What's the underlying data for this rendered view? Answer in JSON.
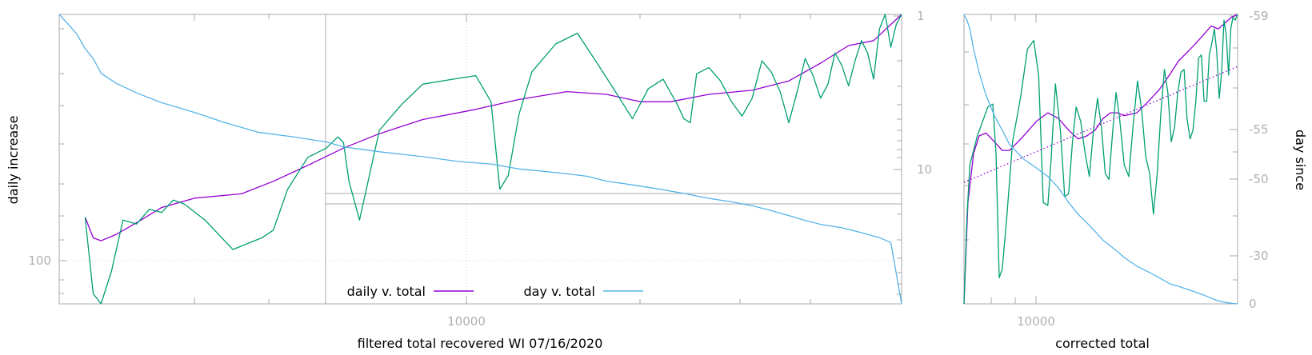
{
  "chart_data": [
    {
      "type": "line",
      "xlabel": "filtered total recovered WI 07/16/2020",
      "ylabel": "daily increase",
      "y2label": "",
      "x_scale": "log",
      "x_range": [
        1300,
        45000
      ],
      "x_tick_labels": [
        {
          "x": 10000,
          "label": "10000"
        }
      ],
      "y_scale": "log",
      "y_range_top_to_bottom": [
        1,
        180
      ],
      "y_left_tick_labels": [
        {
          "y": 100,
          "label": "100"
        }
      ],
      "y_right_tick_labels": [
        {
          "y": 1,
          "label": "1"
        },
        {
          "y": 10,
          "label": "10"
        }
      ],
      "grid": "dotted at x=10000 and y=100",
      "legend": {
        "placement": "bottom-center",
        "entries": [
          {
            "label": "daily v. total",
            "color": "#9400d3"
          },
          {
            "label": "day v. total",
            "color": "#56b4e9"
          }
        ]
      },
      "inset_box": {
        "x_from": 4300,
        "y_from": 12
      },
      "series": [
        {
          "name": "daily v. total",
          "color": "#9400d3",
          "x": [
            1450,
            1500,
            1550,
            1650,
            1800,
            2000,
            2300,
            2800,
            3200,
            3700,
            4300,
            5000,
            6000,
            7500,
            9000,
            11000,
            13000,
            15000,
            17000,
            20000,
            24000,
            28000,
            32000,
            36000,
            40000,
            45000
          ],
          "y": [
            38,
            55,
            58,
            52,
            42,
            32,
            27,
            25,
            20,
            15,
            11,
            8.5,
            6.6,
            5.5,
            4.6,
            4.0,
            4.2,
            4.8,
            4.8,
            4.2,
            3.9,
            3.3,
            2.4,
            1.75,
            1.6,
            1.0
          ]
        },
        {
          "name": "",
          "color": "#009e73",
          "x": [
            1450,
            1500,
            1550,
            1620,
            1700,
            1800,
            1900,
            2000,
            2100,
            2200,
            2400,
            2700,
            2900,
            3050,
            3200,
            3400,
            3700,
            4000,
            4200,
            4300,
            4400,
            4600,
            5000,
            5500,
            6000,
            6800,
            7500,
            8000,
            8300,
            8600,
            9000,
            9500,
            10500,
            11500,
            12500,
            13500,
            14500,
            15500,
            16500,
            17500,
            18000,
            18500,
            19000,
            20000,
            21000,
            22000,
            23000,
            24000,
            25000,
            26000,
            27000,
            28000,
            29000,
            30000,
            31000,
            32000,
            33000,
            34000,
            35000,
            36000,
            37000,
            38000,
            39000,
            40000,
            41000,
            42000,
            43000,
            44000,
            45000
          ],
          "y": [
            38,
            150,
            180,
            100,
            40,
            43,
            33,
            35,
            28,
            30,
            40,
            68,
            60,
            55,
            48,
            23,
            13,
            11,
            9,
            10,
            20,
            40,
            8,
            5,
            3.5,
            3.2,
            3.0,
            4.8,
            23,
            18,
            6,
            2.8,
            1.7,
            1.4,
            2.4,
            4.0,
            6.5,
            3.8,
            3.2,
            5.0,
            6.5,
            7.0,
            2.9,
            2.6,
            3.3,
            4.8,
            6.2,
            4.5,
            2.3,
            2.8,
            4.0,
            7.0,
            4.0,
            2.2,
            3.0,
            4.5,
            3.5,
            2.0,
            2.5,
            3.6,
            2.3,
            1.6,
            2.0,
            3.2,
            1.3,
            1.0,
            1.8,
            1.2,
            1.0
          ]
        },
        {
          "name": "day v. total",
          "color": "#56b4e9",
          "y_axis": "right",
          "y2_range": [
            0,
            -59
          ],
          "x": [
            1300,
            1350,
            1400,
            1450,
            1500,
            1550,
            1650,
            1800,
            2000,
            2300,
            2600,
            3000,
            3500,
            4000,
            4300,
            5000,
            6000,
            7000,
            8000,
            9000,
            10000,
            11000,
            12000,
            13000,
            14000,
            16000,
            18000,
            20000,
            22000,
            24000,
            26000,
            28000,
            30000,
            32000,
            35000,
            38000,
            41000,
            43000,
            45000
          ],
          "y": [
            -59,
            -57,
            -55,
            -52,
            -50,
            -47,
            -45,
            -43,
            -41,
            -39,
            -37,
            -35,
            -34,
            -33,
            -32,
            -31,
            -30,
            -29,
            -28.5,
            -27.5,
            -27,
            -26.5,
            -26,
            -25,
            -24.5,
            -23.5,
            -22.5,
            -21.5,
            -20.8,
            -20,
            -19,
            -18,
            -17,
            -16.2,
            -15.5,
            -14.5,
            -13.5,
            -12.5,
            0
          ]
        }
      ]
    },
    {
      "type": "line",
      "xlabel": "corrected total",
      "ylabel": "day since",
      "x_scale": "log",
      "x_range": [
        7300,
        48000
      ],
      "x_tick_labels": [
        {
          "x": 10000,
          "label": "10000"
        }
      ],
      "y_right_tick_labels": [
        {
          "value": -59,
          "label": "-59"
        },
        {
          "value": -55,
          "label": "-55"
        },
        {
          "value": -50,
          "label": "-50"
        },
        {
          "value": -30,
          "label": "-30"
        },
        {
          "value": 0,
          "label": "0"
        }
      ],
      "series": [
        {
          "name": "",
          "color": "#9400d3",
          "x": [
            7300,
            7500,
            7800,
            8100,
            8500,
            9000,
            9500,
            10000,
            11000,
            12000,
            13000,
            14000,
            15000,
            16000,
            17000,
            18000,
            19000,
            20000,
            21000,
            22000,
            24000,
            26000,
            28000,
            30000,
            32000,
            34000,
            36000,
            38000,
            40000,
            42000,
            44000,
            46000,
            48000
          ],
          "y": [
            0,
            0.35,
            0.52,
            0.58,
            0.59,
            0.56,
            0.53,
            0.53,
            0.58,
            0.63,
            0.66,
            0.64,
            0.6,
            0.57,
            0.58,
            0.6,
            0.64,
            0.66,
            0.66,
            0.65,
            0.66,
            0.7,
            0.74,
            0.79,
            0.84,
            0.87,
            0.9,
            0.93,
            0.96,
            0.95,
            0.97,
            0.99,
            1.0
          ]
        },
        {
          "name": "",
          "color": "#009e73",
          "x": [
            7300,
            7450,
            7600,
            7800,
            8000,
            8300,
            8600,
            8900,
            9100,
            9300,
            9500,
            9800,
            10200,
            10800,
            11300,
            11800,
            12200,
            12600,
            13000,
            13300,
            13700,
            14200,
            14600,
            15000,
            15400,
            15800,
            16300,
            16800,
            17300,
            17800,
            18300,
            18800,
            19300,
            19800,
            20300,
            20800,
            21300,
            22000,
            22700,
            23400,
            24100,
            24800,
            25500,
            26200,
            26900,
            27600,
            28300,
            29000,
            29700,
            30400,
            31100,
            31800,
            32500,
            33200,
            33900,
            34600,
            35300,
            36000,
            36700,
            37400,
            38100,
            38800,
            39500,
            40200,
            40900,
            41600,
            42300,
            43000,
            43700,
            44400,
            45100,
            45800,
            46500,
            47200,
            48000
          ],
          "y": [
            0,
            0.3,
            0.48,
            0.53,
            0.58,
            0.63,
            0.68,
            0.69,
            0.52,
            0.09,
            0.12,
            0.3,
            0.56,
            0.72,
            0.88,
            0.91,
            0.79,
            0.35,
            0.34,
            0.5,
            0.76,
            0.59,
            0.37,
            0.38,
            0.56,
            0.68,
            0.63,
            0.52,
            0.44,
            0.6,
            0.71,
            0.61,
            0.45,
            0.43,
            0.59,
            0.73,
            0.64,
            0.48,
            0.44,
            0.62,
            0.77,
            0.67,
            0.51,
            0.45,
            0.31,
            0.45,
            0.66,
            0.81,
            0.73,
            0.56,
            0.61,
            0.73,
            0.8,
            0.81,
            0.64,
            0.57,
            0.6,
            0.7,
            0.85,
            0.86,
            0.7,
            0.7,
            0.86,
            0.9,
            0.95,
            0.87,
            0.71,
            0.8,
            0.98,
            0.93,
            0.79,
            0.95,
            0.99,
            0.98,
            1.0
          ]
        },
        {
          "name": "",
          "color": "#56b4e9",
          "x": [
            7300,
            7450,
            7600,
            7800,
            8100,
            8500,
            9000,
            9500,
            10000,
            11000,
            12000,
            13000,
            14000,
            15000,
            16000,
            17000,
            18000,
            19000,
            20000,
            21000,
            22000,
            24000,
            26000,
            28000,
            30000,
            32000,
            34000,
            36000,
            38000,
            40000,
            42000,
            44000,
            46000,
            48000
          ],
          "y": [
            1.0,
            0.98,
            0.95,
            0.88,
            0.8,
            0.72,
            0.65,
            0.6,
            0.55,
            0.5,
            0.47,
            0.44,
            0.4,
            0.35,
            0.31,
            0.28,
            0.25,
            0.22,
            0.2,
            0.18,
            0.16,
            0.13,
            0.11,
            0.09,
            0.07,
            0.06,
            0.05,
            0.04,
            0.03,
            0.02,
            0.01,
            0.005,
            0.002,
            0.0
          ]
        },
        {
          "name": "",
          "color": "#9400d3",
          "style": "dotted",
          "x": [
            7300,
            48000
          ],
          "y": [
            0.42,
            0.82
          ]
        }
      ]
    }
  ]
}
